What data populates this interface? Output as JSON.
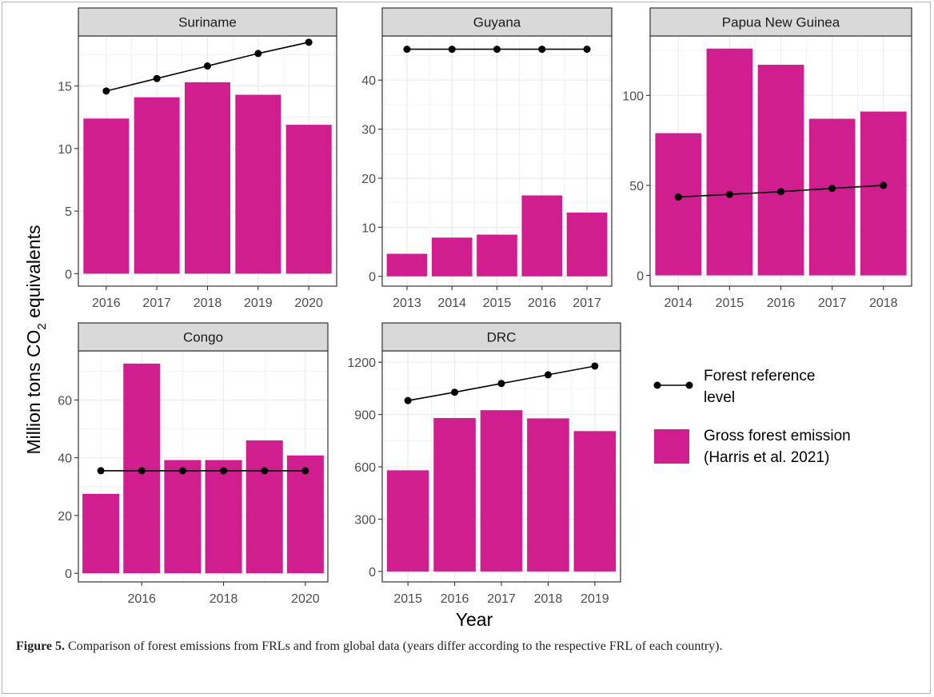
{
  "chart_data": {
    "type": "bar",
    "ylabel_prefix": "Million tons CO",
    "ylabel_sub": "2",
    "ylabel_suffix": " equivalents",
    "xlabel": "Year",
    "colors": {
      "bar": "#d01e8f",
      "line": "#000000",
      "strip": "#d9d9d9",
      "grid": "#ebebeb",
      "panel_border": "#333333"
    },
    "legend": {
      "line_label": [
        "Forest reference",
        "level"
      ],
      "bar_label": [
        "Gross forest emission",
        "(Harris et al. 2021)"
      ]
    },
    "panels": [
      {
        "name": "Suriname",
        "ylim": [
          -1,
          19
        ],
        "yticks": [
          0,
          5,
          10,
          15
        ],
        "xlim": [
          2015.45,
          2020.55
        ],
        "xticks": [
          2016,
          2017,
          2018,
          2019,
          2020
        ],
        "x": [
          2016,
          2017,
          2018,
          2019,
          2020
        ],
        "gross_emission": [
          12.4,
          14.1,
          15.3,
          14.3,
          11.9
        ],
        "frl_x": [
          2016,
          2017,
          2018,
          2019,
          2020
        ],
        "frl": [
          14.6,
          15.6,
          16.6,
          17.6,
          18.5
        ]
      },
      {
        "name": "Guyana",
        "ylim": [
          -2,
          49
        ],
        "yticks": [
          0,
          10,
          20,
          30,
          40
        ],
        "xlim": [
          2012.45,
          2017.55
        ],
        "xticks": [
          2013,
          2014,
          2015,
          2016,
          2017
        ],
        "x": [
          2013,
          2014,
          2015,
          2016,
          2017
        ],
        "gross_emission": [
          4.6,
          7.9,
          8.5,
          16.5,
          13.0
        ],
        "frl_x": [
          2013,
          2014,
          2015,
          2016,
          2017
        ],
        "frl": [
          46.3,
          46.3,
          46.3,
          46.3,
          46.3
        ]
      },
      {
        "name": "Papua New Guinea",
        "ylim": [
          -6,
          133
        ],
        "yticks": [
          0,
          50,
          100
        ],
        "xlim": [
          2013.45,
          2018.55
        ],
        "xticks": [
          2014,
          2015,
          2016,
          2017,
          2018
        ],
        "x": [
          2014,
          2015,
          2016,
          2017,
          2018
        ],
        "gross_emission": [
          79,
          126,
          117,
          87,
          91
        ],
        "frl_x": [
          2014,
          2015,
          2016,
          2017,
          2018
        ],
        "frl": [
          43.5,
          45,
          46.5,
          48.3,
          50
        ]
      },
      {
        "name": "Congo",
        "ylim": [
          -3,
          77
        ],
        "yticks": [
          0,
          20,
          40,
          60
        ],
        "xlim": [
          2014.45,
          2020.55
        ],
        "xticks": [
          2016,
          2018,
          2020
        ],
        "x": [
          2015,
          2016,
          2017,
          2018,
          2019,
          2020
        ],
        "gross_emission": [
          27.5,
          72.6,
          39.2,
          39.2,
          46.0,
          40.8
        ],
        "frl_x": [
          2015,
          2016,
          2017,
          2018,
          2019,
          2020
        ],
        "frl": [
          35.5,
          35.5,
          35.5,
          35.5,
          35.5,
          35.5
        ]
      },
      {
        "name": "DRC",
        "ylim": [
          -60,
          1265
        ],
        "yticks": [
          0,
          300,
          600,
          900,
          1200
        ],
        "xlim": [
          2014.45,
          2019.55
        ],
        "xticks": [
          2015,
          2016,
          2017,
          2018,
          2019
        ],
        "x": [
          2015,
          2016,
          2017,
          2018,
          2019
        ],
        "gross_emission": [
          580,
          880,
          925,
          878,
          805
        ],
        "frl_x": [
          2015,
          2016,
          2017,
          2018,
          2019
        ],
        "frl": [
          980,
          1028,
          1078,
          1128,
          1178
        ]
      }
    ]
  },
  "caption": {
    "label": "Figure 5.",
    "text": " Comparison of forest emissions from FRLs and from global data (years differ according to the respective FRL of each country)."
  }
}
